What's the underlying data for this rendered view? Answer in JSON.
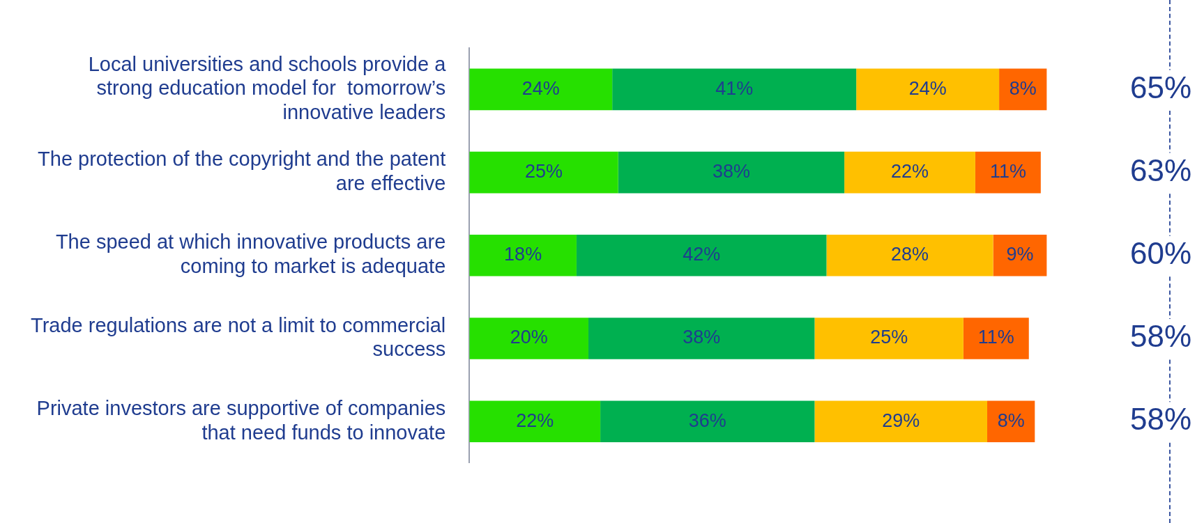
{
  "chart_data": {
    "type": "bar",
    "orientation": "horizontal",
    "stacked": true,
    "legend": false,
    "grid": false,
    "tick_labels": "y",
    "categories": [
      "Local universities and schools provide a strong education model for  tomorrow’s innovative leaders",
      "The protection of the copyright and the patent are effective",
      "The speed at which innovative products are coming to market is adequate",
      "Trade regulations are not a limit to commercial success",
      "Private investors are supportive of companies that need funds to innovate"
    ],
    "series": [
      {
        "color": "#26e000",
        "values": [
          24,
          25,
          18,
          20,
          22
        ],
        "value_labels": [
          "24%",
          "25%",
          "18%",
          "20%",
          "22%"
        ]
      },
      {
        "color": "#00b050",
        "values": [
          41,
          38,
          42,
          38,
          36
        ],
        "value_labels": [
          "41%",
          "38%",
          "42%",
          "38%",
          "36%"
        ]
      },
      {
        "color": "#ffc000",
        "values": [
          24,
          22,
          28,
          25,
          29
        ],
        "value_labels": [
          "24%",
          "22%",
          "28%",
          "25%",
          "29%"
        ]
      },
      {
        "color": "#ff6600",
        "values": [
          8,
          11,
          9,
          11,
          8
        ],
        "value_labels": [
          "8%",
          "11%",
          "9%",
          "11%",
          "8%"
        ]
      }
    ],
    "annotations": [
      "65%",
      "63%",
      "60%",
      "58%",
      "58%"
    ]
  }
}
